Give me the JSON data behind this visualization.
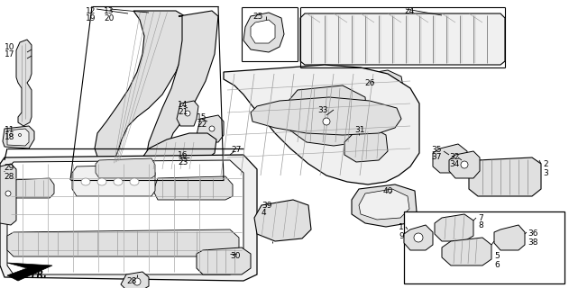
{
  "bg_color": "#ffffff",
  "line_color": "#000000",
  "fill_white": "#ffffff",
  "fill_light": "#f0f0f0",
  "fill_mid": "#e0e0e0",
  "fill_dark": "#c8c8c8",
  "lw_main": 0.8,
  "lw_thin": 0.5,
  "lw_detail": 0.4,
  "label_fs": 6.5
}
